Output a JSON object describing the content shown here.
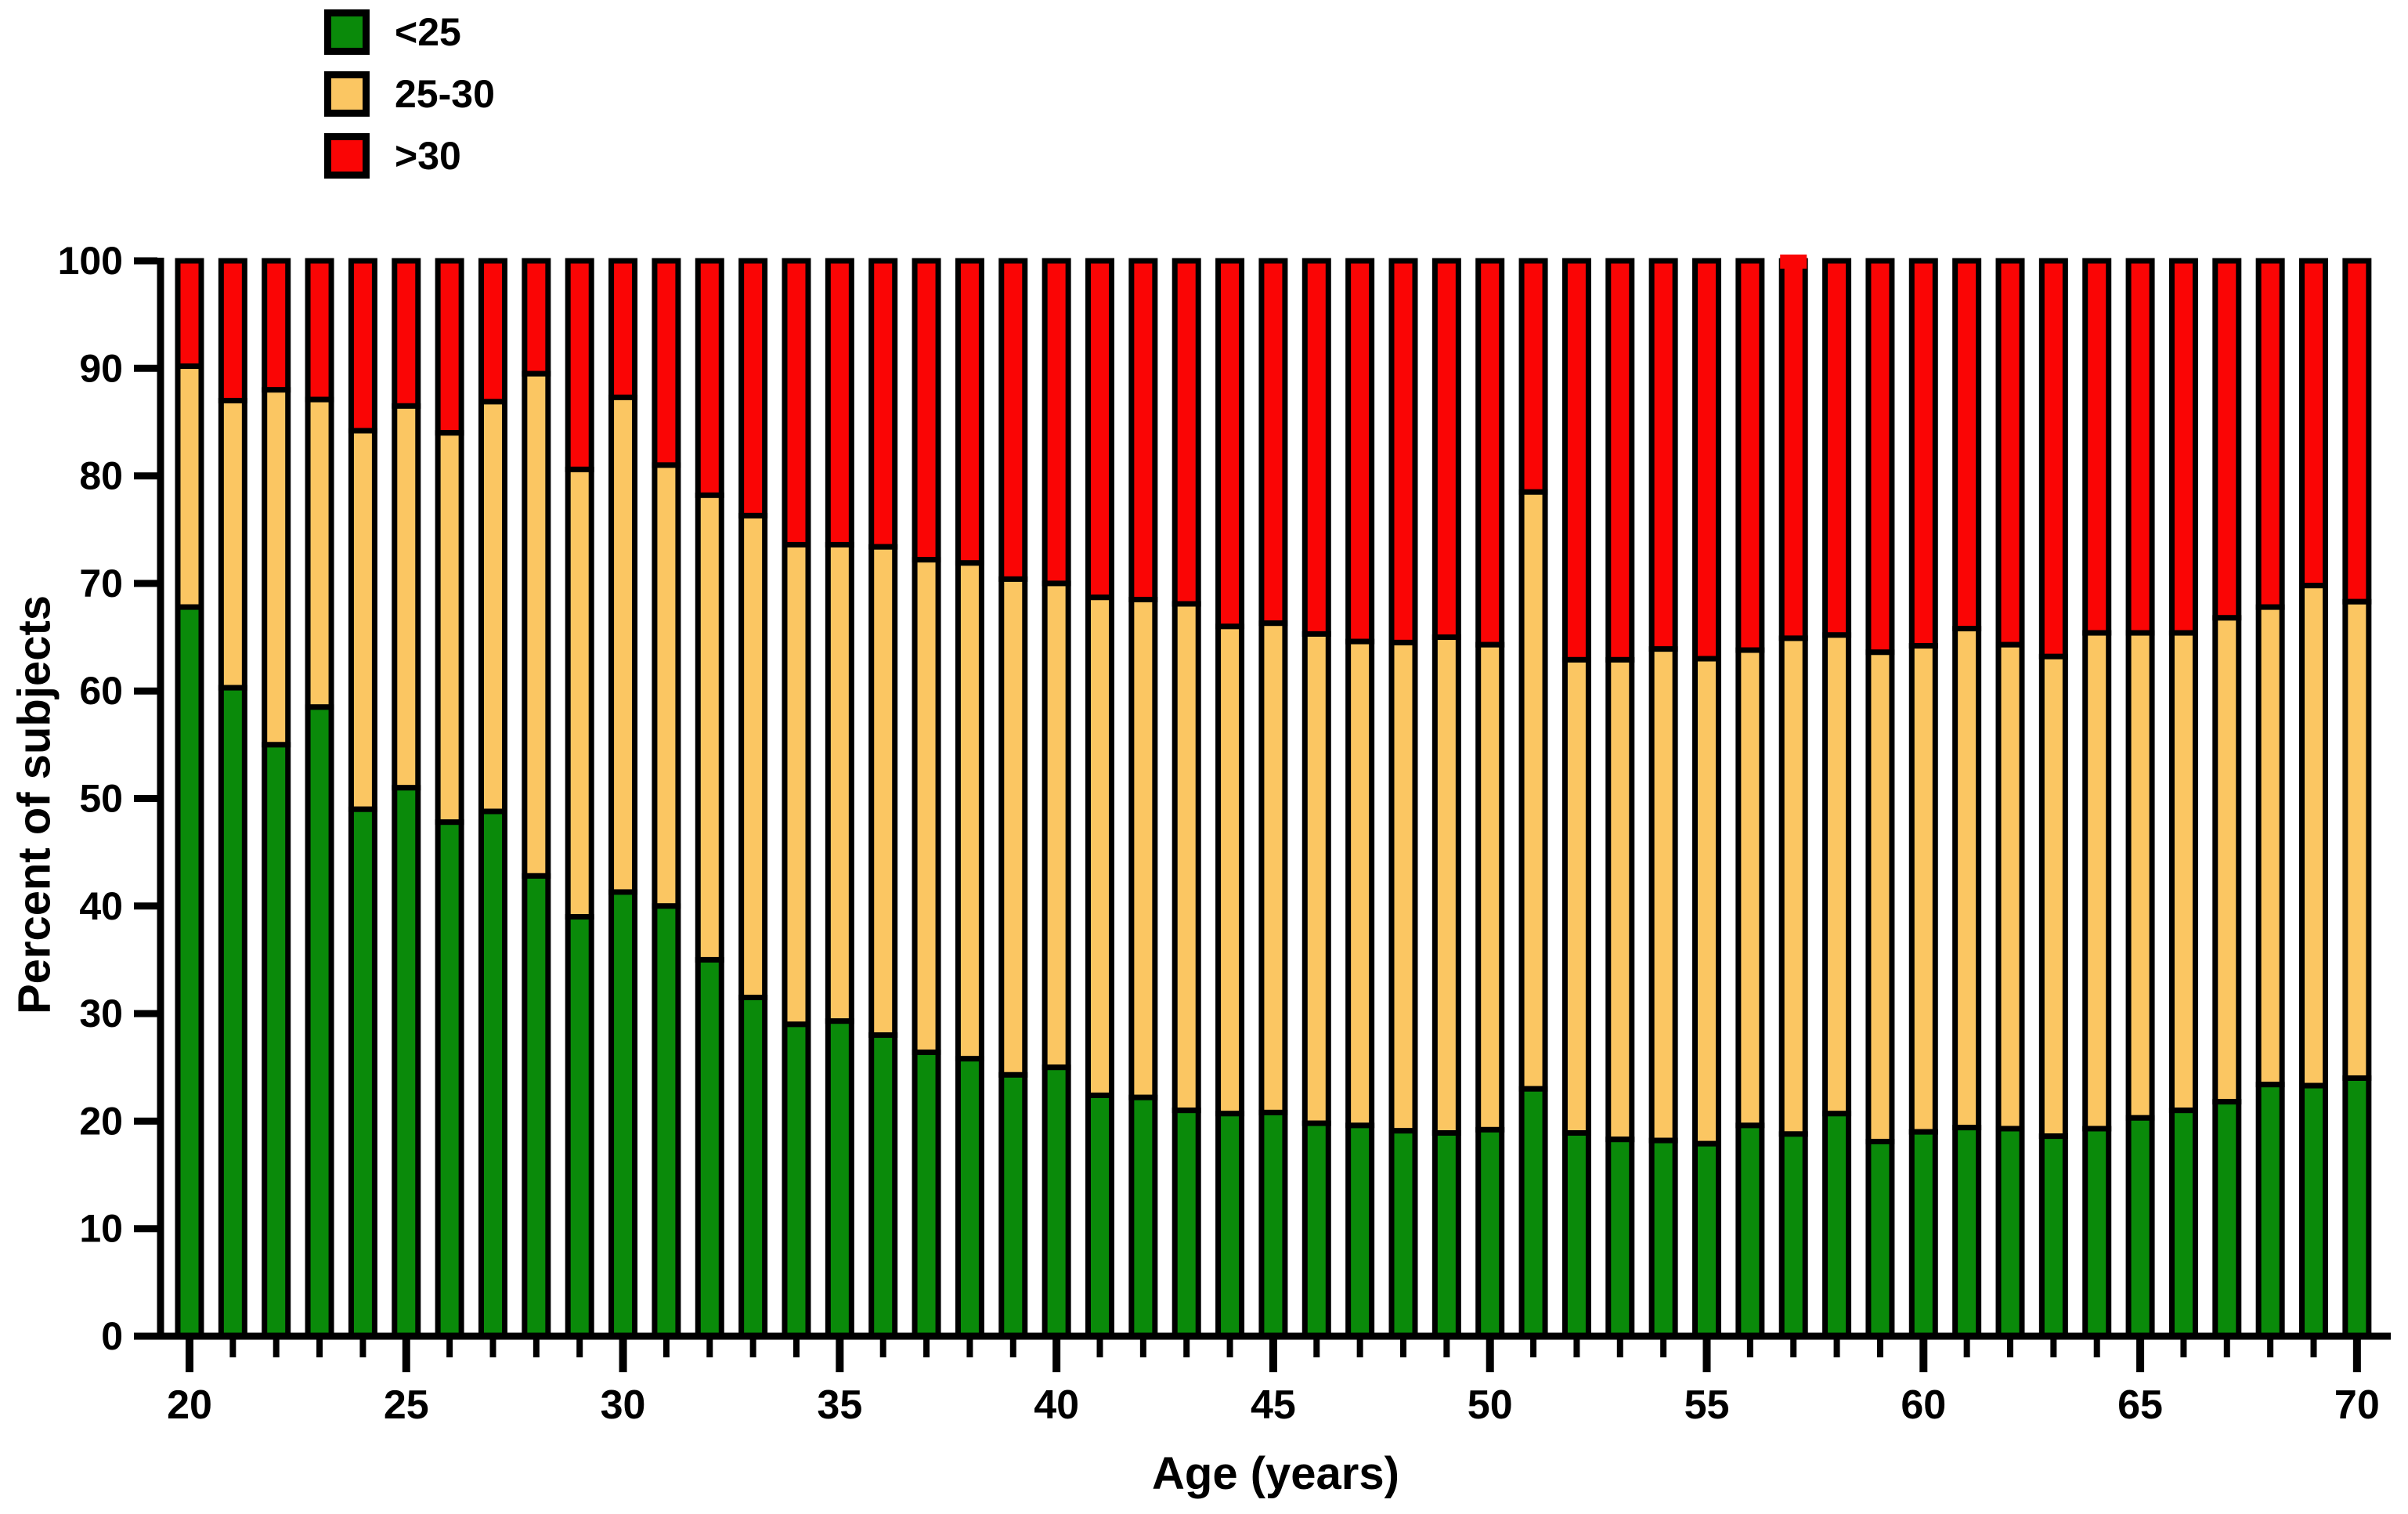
{
  "chart_data": {
    "type": "bar",
    "stacked": true,
    "title": "",
    "xlabel": "Age (years)",
    "ylabel": "Percent of subjects",
    "ylim": [
      0,
      100
    ],
    "yticks": [
      0,
      10,
      20,
      30,
      40,
      50,
      60,
      70,
      80,
      90,
      100
    ],
    "xticks_major": [
      20,
      25,
      30,
      35,
      40,
      45,
      50,
      55,
      60,
      65,
      70
    ],
    "grid": "off",
    "legend_position": "top-left",
    "ages": [
      20,
      21,
      22,
      23,
      24,
      25,
      26,
      27,
      28,
      29,
      30,
      31,
      32,
      33,
      34,
      35,
      36,
      37,
      38,
      39,
      40,
      41,
      42,
      43,
      44,
      45,
      46,
      47,
      48,
      49,
      50,
      51,
      52,
      53,
      54,
      55,
      56,
      57,
      58,
      59,
      60,
      61,
      62,
      63,
      64,
      65,
      66,
      67,
      68,
      69,
      70
    ],
    "series": [
      {
        "name": "<25",
        "color": "#0A8A0A",
        "values": [
          67.8,
          60.3,
          55.0,
          58.5,
          49.0,
          51.0,
          47.8,
          48.8,
          42.8,
          39.0,
          41.3,
          40.0,
          35.0,
          31.5,
          29.0,
          29.3,
          28.0,
          26.4,
          25.8,
          24.3,
          25.0,
          22.4,
          22.2,
          21.0,
          20.7,
          20.8,
          19.8,
          19.6,
          19.1,
          18.9,
          19.2,
          23.0,
          18.9,
          18.3,
          18.2,
          17.9,
          19.6,
          18.8,
          20.7,
          18.1,
          19.0,
          19.4,
          19.3,
          18.6,
          19.3,
          20.3,
          21.0,
          21.8,
          23.4,
          23.3,
          24.0
        ]
      },
      {
        "name": "25-30",
        "color": "#FBC662",
        "values": [
          22.4,
          26.7,
          33.0,
          28.6,
          35.2,
          35.5,
          36.2,
          38.1,
          46.7,
          41.6,
          46.0,
          41.0,
          43.2,
          44.8,
          44.6,
          44.3,
          45.4,
          45.8,
          46.1,
          46.1,
          45.0,
          46.3,
          46.3,
          47.1,
          45.3,
          45.5,
          45.5,
          45.0,
          45.4,
          46.1,
          45.1,
          55.5,
          44.0,
          44.6,
          45.7,
          45.1,
          44.2,
          46.1,
          44.5,
          45.5,
          45.2,
          46.4,
          45.0,
          44.6,
          46.1,
          45.1,
          44.4,
          45.0,
          44.4,
          46.5,
          44.3
        ]
      },
      {
        "name": ">30",
        "color": "#FA0505",
        "values": [
          9.8,
          13.0,
          12.0,
          12.9,
          15.8,
          13.5,
          16.0,
          13.1,
          10.5,
          19.4,
          12.7,
          19.0,
          21.8,
          23.7,
          26.4,
          26.4,
          26.6,
          27.8,
          28.1,
          29.6,
          30.0,
          31.3,
          31.5,
          31.9,
          34.0,
          33.7,
          34.7,
          35.4,
          35.5,
          35.0,
          35.7,
          21.5,
          37.1,
          37.1,
          36.1,
          37.0,
          36.2,
          35.1,
          34.8,
          36.4,
          35.8,
          34.2,
          35.7,
          36.8,
          34.6,
          34.6,
          34.6,
          33.2,
          32.2,
          30.2,
          31.7
        ]
      }
    ],
    "annotations": {
      "red_overflow_age": 57
    }
  }
}
